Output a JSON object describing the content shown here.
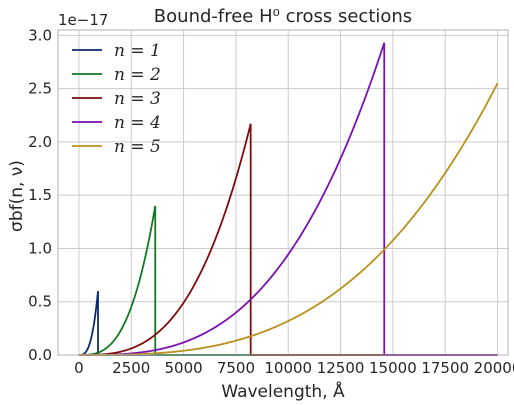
{
  "chart_data": {
    "type": "line",
    "title": "Bound-free H⁰ cross sections",
    "xlabel": "Wavelength, Å",
    "ylabel": "σbf(n, ν)",
    "y_scale_label": "1e−17",
    "xlim": [
      -1000,
      20500
    ],
    "ylim": [
      0,
      3.05
    ],
    "x_ticks": [
      0,
      2500,
      5000,
      7500,
      10000,
      12500,
      15000,
      17500,
      20000
    ],
    "y_ticks": [
      0.0,
      0.5,
      1.0,
      1.5,
      2.0,
      2.5,
      3.0
    ],
    "x_tick_labels": [
      "0",
      "2500",
      "5000",
      "7500",
      "10000",
      "12500",
      "15000",
      "17500",
      "20000"
    ],
    "y_tick_labels": [
      "0.0",
      "0.5",
      "1.0",
      "1.5",
      "2.0",
      "2.5",
      "3.0"
    ],
    "grid": true,
    "legend_position": "top-left",
    "series": [
      {
        "name": "n = 1",
        "label": "n = 1",
        "color": "#0b2a6f",
        "edge": 912,
        "peak": 0.6,
        "exponent": 3
      },
      {
        "name": "n = 2",
        "label": "n = 2",
        "color": "#107a24",
        "edge": 3647,
        "peak": 1.4,
        "exponent": 3
      },
      {
        "name": "n = 3",
        "label": "n = 3",
        "color": "#7f0c0c",
        "edge": 8206,
        "peak": 2.17,
        "exponent": 3
      },
      {
        "name": "n = 4",
        "label": "n = 4",
        "color": "#7b10b3",
        "edge": 14588,
        "peak": 2.93,
        "exponent": 3
      },
      {
        "name": "n = 5",
        "label": "n = 5",
        "color": "#b8901a",
        "edge": 20000,
        "peak": 2.55,
        "exponent": 3
      }
    ],
    "x_end": 20000
  }
}
